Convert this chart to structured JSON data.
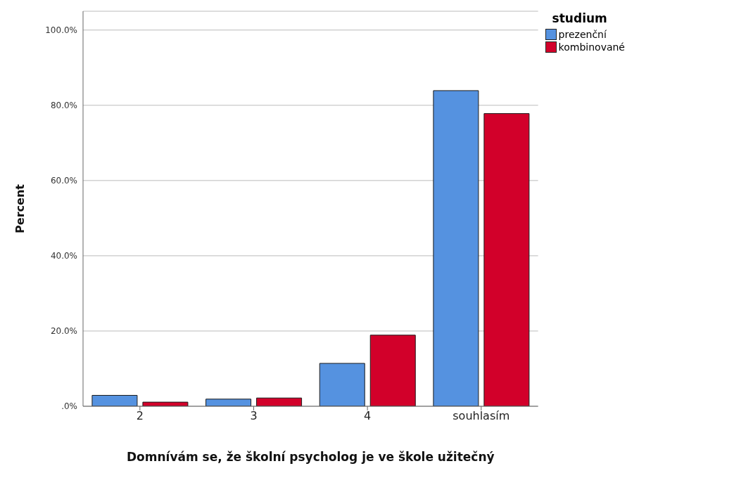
{
  "chart_data": {
    "type": "bar",
    "xlabel": "Domnívám se, že školní psycholog je ve škole užitečný",
    "ylabel": "Percent",
    "legend_title": "studium",
    "categories": [
      "2",
      "3",
      "4",
      "souhlasím"
    ],
    "series": [
      {
        "name": "prezenční",
        "color": "#5592e0",
        "values": [
          2.9,
          1.9,
          11.4,
          83.9
        ]
      },
      {
        "name": "kombinované",
        "color": "#d2002a",
        "values": [
          1.1,
          2.2,
          18.9,
          77.8
        ]
      }
    ],
    "ylim": [
      0,
      105
    ],
    "yticks": [
      {
        "value": 0,
        "label": ".0%"
      },
      {
        "value": 20,
        "label": "20.0%"
      },
      {
        "value": 40,
        "label": "40.0%"
      },
      {
        "value": 60,
        "label": "60.0%"
      },
      {
        "value": 80,
        "label": "80.0%"
      },
      {
        "value": 100,
        "label": "100.0%"
      }
    ],
    "grid": "y",
    "legend": "top right"
  }
}
